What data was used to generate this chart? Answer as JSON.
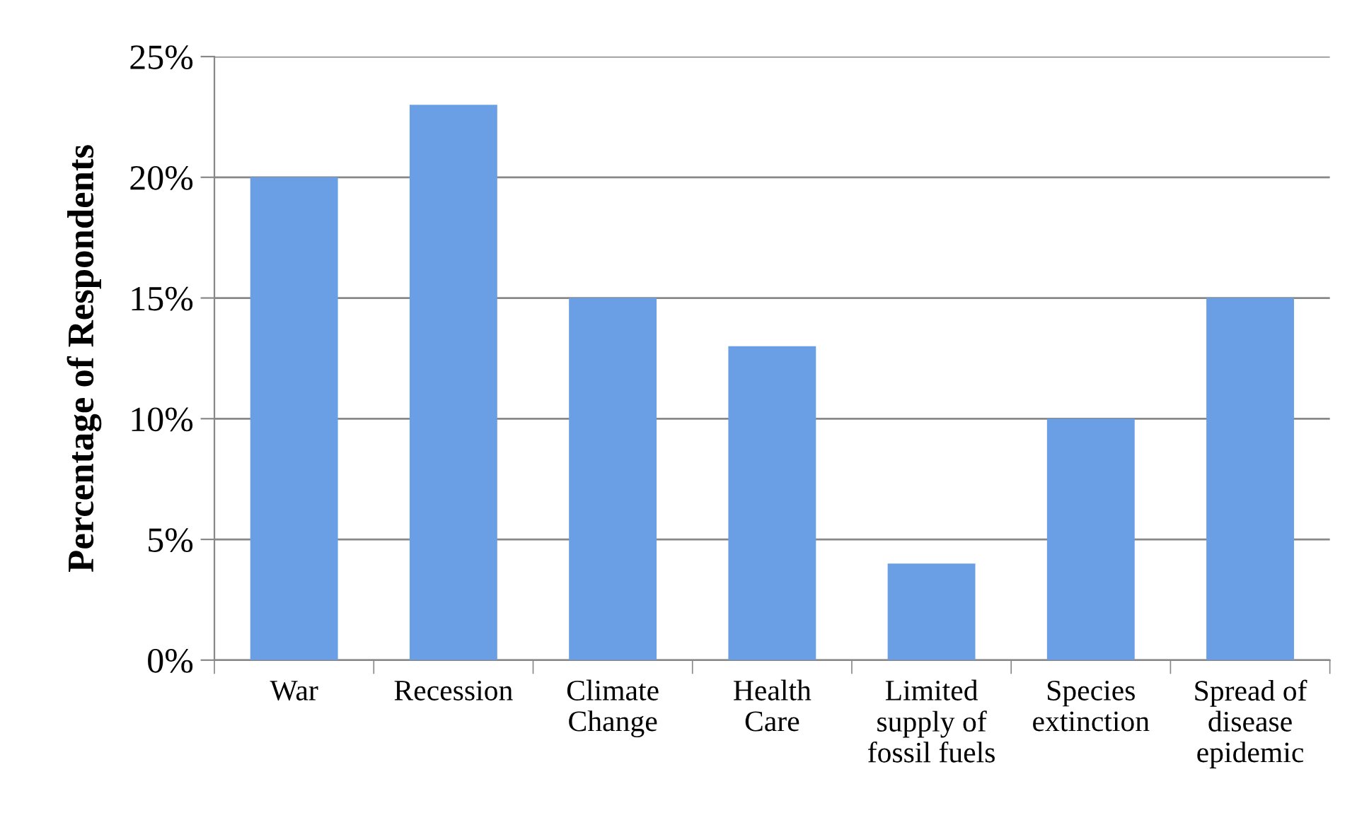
{
  "chart_data": {
    "type": "bar",
    "ylabel": "Percentage of Respondents",
    "categories": [
      "War",
      "Recession",
      "Climate\nChange",
      "Health\nCare",
      "Limited\nsupply of\nfossil fuels",
      "Species\nextinction",
      "Spread of\ndisease\nepidemic"
    ],
    "values": [
      20,
      23,
      15,
      13,
      4,
      10,
      15
    ],
    "color": "#6a9fe6",
    "ylim": [
      0,
      25
    ],
    "yticks": [
      {
        "value": 0,
        "label": "0%"
      },
      {
        "value": 5,
        "label": "5%"
      },
      {
        "value": 10,
        "label": "10%"
      },
      {
        "value": 15,
        "label": "15%"
      },
      {
        "value": 20,
        "label": "20%"
      },
      {
        "value": 25,
        "label": "25%"
      }
    ],
    "grid": "y",
    "legend": false
  }
}
